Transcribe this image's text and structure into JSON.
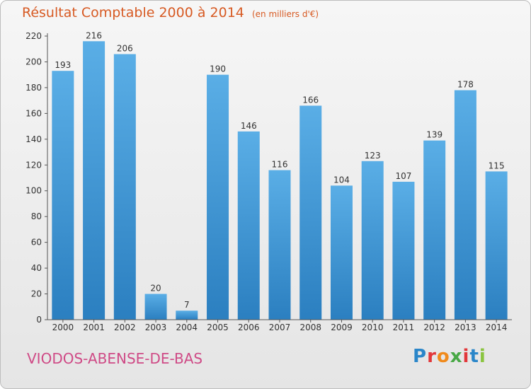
{
  "header": {
    "title": "Résultat Comptable 2000 à 2014",
    "subtitle": "(en milliers d'€)"
  },
  "footer": {
    "commune": "VIODOS-ABENSE-DE-BAS",
    "logo": "Proxiti"
  },
  "colors": {
    "title": "#d75a23",
    "commune": "#cf4a86",
    "bar_top": "#5aaee6",
    "bar_bottom": "#2b7fc0"
  },
  "chart_data": {
    "type": "bar",
    "title": "Résultat Comptable 2000 à 2014",
    "subtitle": "(en milliers d'€)",
    "xlabel": "",
    "ylabel": "",
    "categories": [
      "2000",
      "2001",
      "2002",
      "2003",
      "2004",
      "2005",
      "2006",
      "2007",
      "2008",
      "2009",
      "2010",
      "2011",
      "2012",
      "2013",
      "2014"
    ],
    "values": [
      193,
      216,
      206,
      20,
      7,
      190,
      146,
      116,
      166,
      104,
      123,
      107,
      139,
      178,
      115
    ],
    "ylim": [
      0,
      220
    ],
    "yticks": [
      0,
      20,
      40,
      60,
      80,
      100,
      120,
      140,
      160,
      180,
      200,
      220
    ],
    "grid": false,
    "legend": "none"
  }
}
